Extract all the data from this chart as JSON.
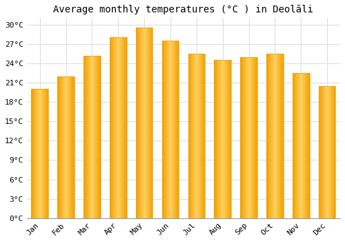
{
  "months": [
    "Jan",
    "Feb",
    "Mar",
    "Apr",
    "May",
    "Jun",
    "Jul",
    "Aug",
    "Sep",
    "Oct",
    "Nov",
    "Dec"
  ],
  "values": [
    20.0,
    22.0,
    25.2,
    28.0,
    29.5,
    27.5,
    25.5,
    24.5,
    25.0,
    25.5,
    22.5,
    20.5
  ],
  "bar_color_center": "#FFD060",
  "bar_color_edge": "#F0A000",
  "title": "Average monthly temperatures (°C ) in Deolāli",
  "ylim": [
    0,
    31
  ],
  "yticks": [
    0,
    3,
    6,
    9,
    12,
    15,
    18,
    21,
    24,
    27,
    30
  ],
  "ytick_labels": [
    "0°C",
    "3°C",
    "6°C",
    "9°C",
    "12°C",
    "15°C",
    "18°C",
    "21°C",
    "24°C",
    "27°C",
    "30°C"
  ],
  "background_color": "#ffffff",
  "grid_color": "#dddddd",
  "title_fontsize": 10,
  "tick_fontsize": 8,
  "font_family": "monospace",
  "bar_width": 0.65
}
